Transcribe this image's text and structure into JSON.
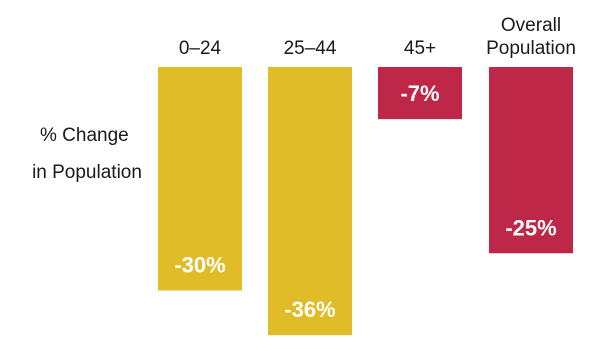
{
  "chart_data": {
    "type": "bar",
    "title": "",
    "xlabel": "",
    "ylabel": [
      "% Change",
      "in Population"
    ],
    "categories": [
      [
        "0–24"
      ],
      [
        "25–44"
      ],
      [
        "45+"
      ],
      [
        "Overall",
        "Population"
      ]
    ],
    "values": [
      -30,
      -36,
      -7,
      -25
    ],
    "value_labels": [
      "-30%",
      "-36%",
      "-7%",
      "-25%"
    ],
    "ylim": [
      -36,
      0
    ],
    "grid": false,
    "legend": "none",
    "colors": {
      "age_groups_decline_large": "#E0BC28",
      "decline_small_and_overall": "#BE2748",
      "label_text": "#FFFFFF",
      "axis_text": "#1A1A1A"
    },
    "bar_colors": [
      "#E0BC28",
      "#E0BC28",
      "#BE2748",
      "#BE2748"
    ]
  }
}
